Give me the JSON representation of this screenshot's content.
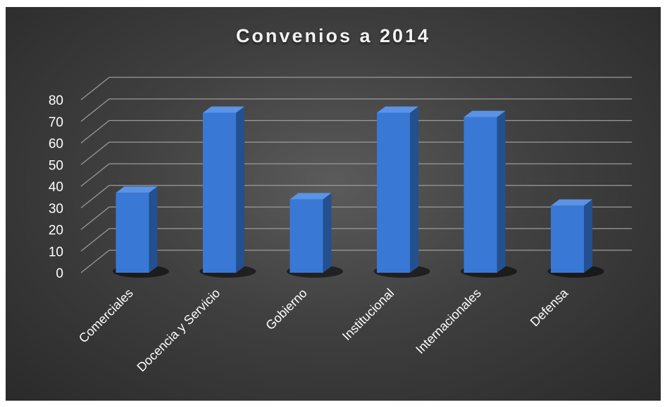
{
  "chart_data": {
    "type": "bar",
    "title": "Convenios a 2014",
    "categories": [
      "Comerciales",
      "Docencia y Servicio",
      "Gobierno",
      "Institucional",
      "Internacionales",
      "Defensa"
    ],
    "values": [
      37,
      74,
      34,
      74,
      72,
      31
    ],
    "ylim": [
      0,
      80
    ],
    "yticks": [
      0,
      10,
      20,
      30,
      40,
      50,
      60,
      70,
      80
    ],
    "grid": true,
    "style": "3d-column",
    "colors": {
      "bar_front": "#3a78d6",
      "bar_side": "#23508f",
      "bar_top": "#5b93e6",
      "grid": "#9a9a9a",
      "text": "#ffffff"
    }
  }
}
